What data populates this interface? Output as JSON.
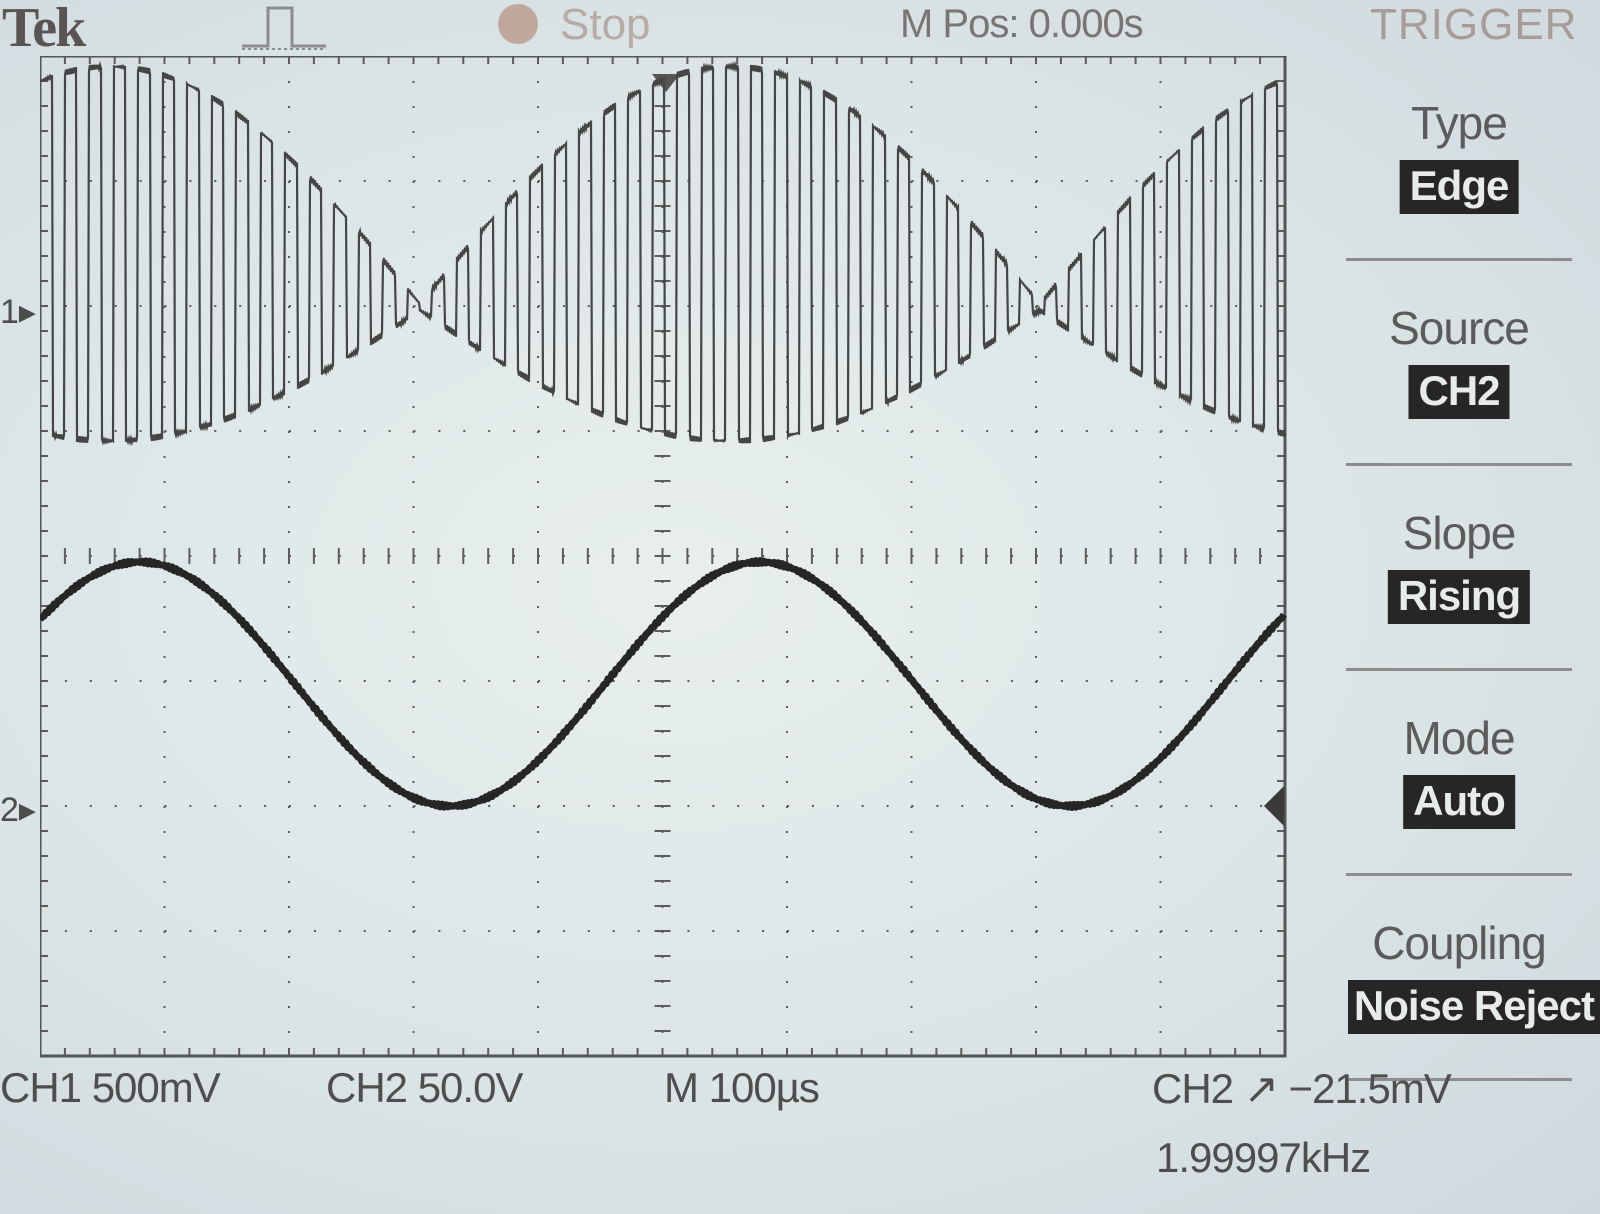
{
  "header": {
    "brand": "Tek",
    "acquisition_icon": "pulse-waveform-icon",
    "run_state_icon": "stop-indicator-dot-icon",
    "run_state": "Stop",
    "m_pos": "M Pos: 0.000s",
    "menu_title": "TRIGGER"
  },
  "markers": {
    "ch1_ground": "1",
    "ch2_ground": "2"
  },
  "trigger_menu": [
    {
      "label": "Type",
      "value": "Edge"
    },
    {
      "label": "Source",
      "value": "CH2"
    },
    {
      "label": "Slope",
      "value": "Rising"
    },
    {
      "label": "Mode",
      "value": "Auto"
    },
    {
      "label": "Coupling",
      "value": "Noise Reject"
    }
  ],
  "status": {
    "ch1_scale": "CH1  500mV",
    "ch2_scale": "CH2  50.0V",
    "timebase": "M 100µs",
    "trigger": "CH2 ↗ −21.5mV",
    "frequency": "1.99997kHz"
  },
  "colors": {
    "screen_bg": "#dde6e6",
    "trace": "#3a3a3a",
    "grid": "#5c5c5c",
    "highlight_bg": "#262626"
  }
}
